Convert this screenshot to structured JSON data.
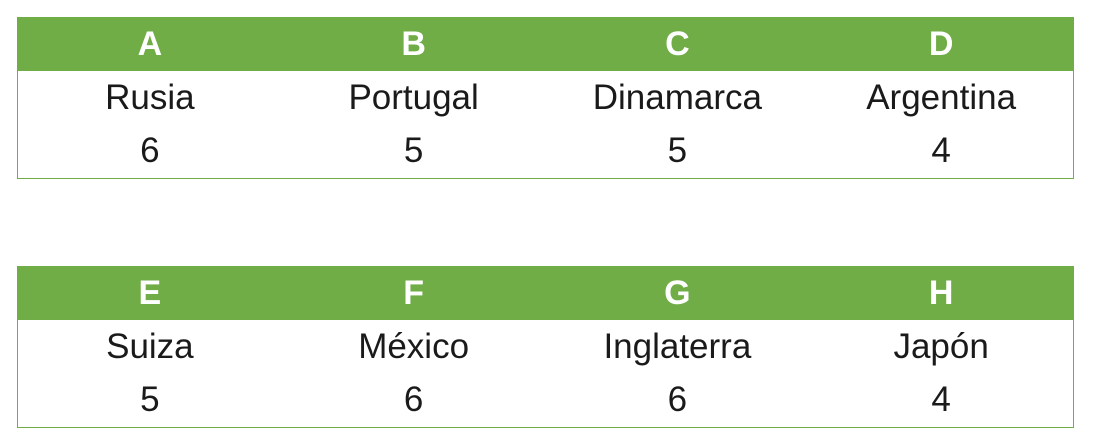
{
  "groups": [
    {
      "columns": [
        {
          "letter": "A",
          "team": "Rusia",
          "points": "6"
        },
        {
          "letter": "B",
          "team": "Portugal",
          "points": "5"
        },
        {
          "letter": "C",
          "team": "Dinamarca",
          "points": "5"
        },
        {
          "letter": "D",
          "team": "Argentina",
          "points": "4"
        }
      ]
    },
    {
      "columns": [
        {
          "letter": "E",
          "team": "Suiza",
          "points": "5"
        },
        {
          "letter": "F",
          "team": "México",
          "points": "6"
        },
        {
          "letter": "G",
          "team": "Inglaterra",
          "points": "6"
        },
        {
          "letter": "H",
          "team": "Japón",
          "points": "4"
        }
      ]
    }
  ],
  "colors": {
    "header_bg": "#70ad47",
    "header_text": "#ffffff",
    "body_text": "#1a1a1a",
    "border": "#70ad47"
  }
}
